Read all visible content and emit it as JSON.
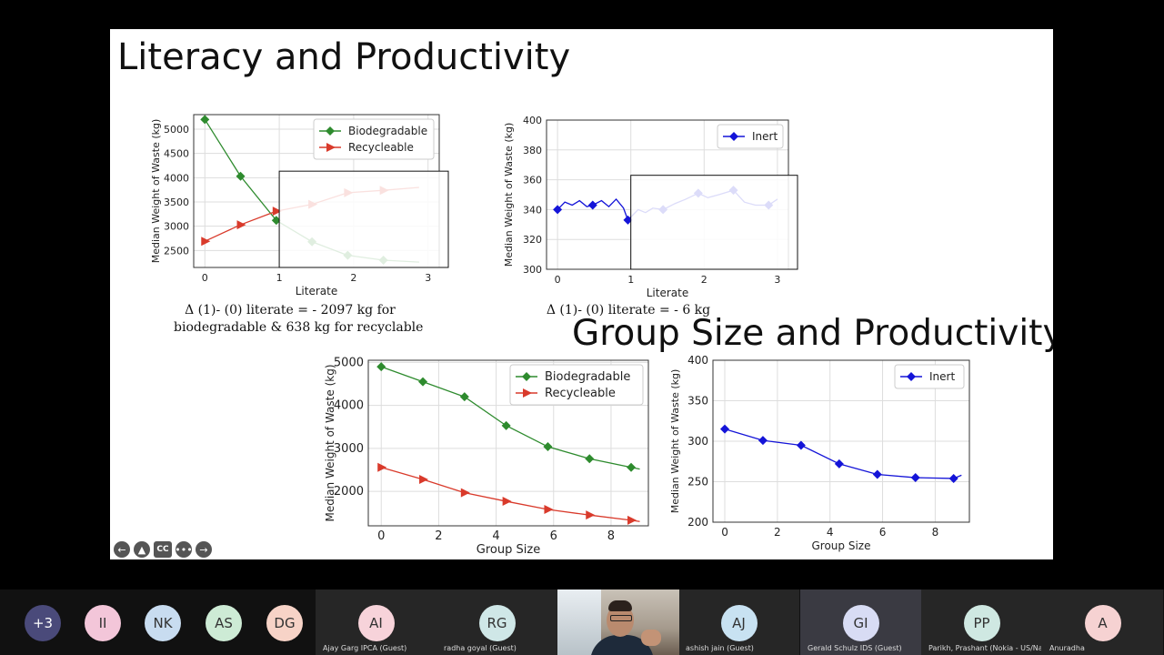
{
  "slide": {
    "title": "Literacy and Productivity",
    "title2": "Group Size and Productivity",
    "caption1_line1": "Δ (1)- (0) literate = - 2097 kg  for",
    "caption1_line2": "biodegradable & 638 kg for recyclable",
    "caption2": "Δ (1)- (0) literate = - 6 kg"
  },
  "controls": [
    {
      "name": "prev-slide-icon",
      "glyph": "←"
    },
    {
      "name": "pointer-icon",
      "glyph": "▲"
    },
    {
      "name": "captions-icon",
      "glyph": "CC"
    },
    {
      "name": "more-icon",
      "glyph": "•••"
    },
    {
      "name": "next-slide-icon",
      "glyph": "→"
    }
  ],
  "colors": {
    "green": "#2e8b2e",
    "red": "#d93a2b",
    "blue": "#1414d8"
  },
  "chart_data": [
    {
      "type": "line",
      "xlabel": "Literate",
      "ylabel": "Median Weight of Waste (kg)",
      "xlim": [
        -0.15,
        3.15
      ],
      "ylim": [
        2150,
        5300
      ],
      "xticks": [
        0,
        1,
        2,
        3
      ],
      "yticks": [
        2500,
        3000,
        3500,
        4000,
        4500,
        5000
      ],
      "grid": true,
      "legend": "top-right",
      "series": [
        {
          "name": "Biodegradable",
          "color": "#2e8b2e",
          "marker": "diamond",
          "x": [
            0,
            0.48,
            0.96,
            1.44,
            1.92,
            2.4,
            2.88
          ],
          "y": [
            5200,
            4030,
            3120,
            2680,
            2400,
            2300,
            2260
          ]
        },
        {
          "name": "Recycleable",
          "color": "#d93a2b",
          "marker": "triangle-right",
          "x": [
            0,
            0.48,
            0.96,
            1.44,
            1.92,
            2.4,
            2.88
          ],
          "y": [
            2690,
            3030,
            3310,
            3450,
            3690,
            3740,
            3800
          ]
        }
      ],
      "overlay_from_x": 1
    },
    {
      "type": "line",
      "xlabel": "Literate",
      "ylabel": "Median Weight of Waste (kg)",
      "xlim": [
        -0.15,
        3.15
      ],
      "ylim": [
        300,
        400
      ],
      "xticks": [
        0,
        1,
        2,
        3
      ],
      "yticks": [
        300,
        320,
        340,
        360,
        380,
        400
      ],
      "grid": true,
      "legend": "top-right",
      "series": [
        {
          "name": "Inert",
          "color": "#1414d8",
          "marker": "diamond",
          "x": [
            0,
            0.1,
            0.2,
            0.3,
            0.4,
            0.48,
            0.6,
            0.7,
            0.8,
            0.9,
            0.96,
            1.1,
            1.2,
            1.3,
            1.44,
            1.6,
            1.75,
            1.92,
            2.05,
            2.2,
            2.4,
            2.55,
            2.7,
            2.88,
            3.0
          ],
          "y": [
            340,
            345,
            343,
            346,
            342,
            343,
            346,
            342,
            347,
            341,
            333,
            340,
            338,
            341,
            340,
            344,
            347,
            351,
            348,
            350,
            353,
            345,
            343,
            343,
            347
          ],
          "marker_idx": [
            0,
            5,
            10,
            14,
            17,
            20,
            23
          ]
        }
      ],
      "overlay_from_x": 1
    },
    {
      "type": "line",
      "xlabel": "Group Size",
      "ylabel": "Median Weight of Waste (kg)",
      "xlim": [
        -0.45,
        9.3
      ],
      "ylim": [
        1200,
        5050
      ],
      "xticks": [
        0,
        2,
        4,
        6,
        8
      ],
      "yticks": [
        2000,
        3000,
        4000,
        5000
      ],
      "grid": true,
      "legend": "top-right",
      "series": [
        {
          "name": "Biodegradable",
          "color": "#2e8b2e",
          "marker": "diamond",
          "x": [
            0,
            1.45,
            2.9,
            4.35,
            5.8,
            7.25,
            8.7,
            9.0
          ],
          "y": [
            4900,
            4550,
            4200,
            3530,
            3040,
            2760,
            2560,
            2520
          ]
        },
        {
          "name": "Recycleable",
          "color": "#d93a2b",
          "marker": "triangle-right",
          "x": [
            0,
            1.45,
            2.9,
            4.35,
            5.8,
            7.25,
            8.7,
            9.0
          ],
          "y": [
            2560,
            2280,
            1970,
            1770,
            1580,
            1450,
            1330,
            1300
          ]
        }
      ]
    },
    {
      "type": "line",
      "xlabel": "Group Size",
      "ylabel": "Median Weight of Waste (kg)",
      "xlim": [
        -0.45,
        9.3
      ],
      "ylim": [
        200,
        400
      ],
      "xticks": [
        0,
        2,
        4,
        6,
        8
      ],
      "yticks": [
        200,
        250,
        300,
        350,
        400
      ],
      "grid": true,
      "legend": "top-right",
      "series": [
        {
          "name": "Inert",
          "color": "#1414d8",
          "marker": "diamond",
          "x": [
            0,
            1.45,
            2.9,
            4.35,
            5.8,
            7.25,
            8.7,
            9.0
          ],
          "y": [
            315,
            301,
            295,
            272,
            259,
            255,
            254,
            258
          ],
          "marker_idx": [
            0,
            1,
            2,
            3,
            4,
            5,
            6
          ]
        }
      ]
    }
  ],
  "participants": [
    {
      "initials": "+3",
      "name": "",
      "bg": "#4a4a7a",
      "fg": "#ffffff"
    },
    {
      "initials": "II",
      "name": "",
      "bg": "#f3c6d9",
      "fg": "#333333"
    },
    {
      "initials": "NK",
      "name": "",
      "bg": "#c8dcf0",
      "fg": "#333333"
    },
    {
      "initials": "AS",
      "name": "",
      "bg": "#cdebd5",
      "fg": "#333333"
    },
    {
      "initials": "DG",
      "name": "",
      "bg": "#f7d3c7",
      "fg": "#333333"
    },
    {
      "initials": "AI",
      "name": "Ajay Garg IPCA (Guest)",
      "bg": "#f7d3da",
      "fg": "#333333"
    },
    {
      "initials": "RG",
      "name": "radha goyal (Guest)",
      "bg": "#cfe7e7",
      "fg": "#333333"
    },
    {
      "initials": "AJ",
      "name": "ashish jain (Guest)",
      "bg": "#c8e2f2",
      "fg": "#333333"
    },
    {
      "initials": "GI",
      "name": "Gerald Schulz  IDS  (Guest)",
      "bg": "#d8dcf4",
      "fg": "#333333"
    },
    {
      "initials": "PP",
      "name": "Parikh, Prashant (Nokia - US/Naper...",
      "bg": "#cfe8e2",
      "fg": "#333333"
    },
    {
      "initials": "A",
      "name": "Anuradha",
      "bg": "#f6d2d2",
      "fg": "#333333"
    }
  ]
}
